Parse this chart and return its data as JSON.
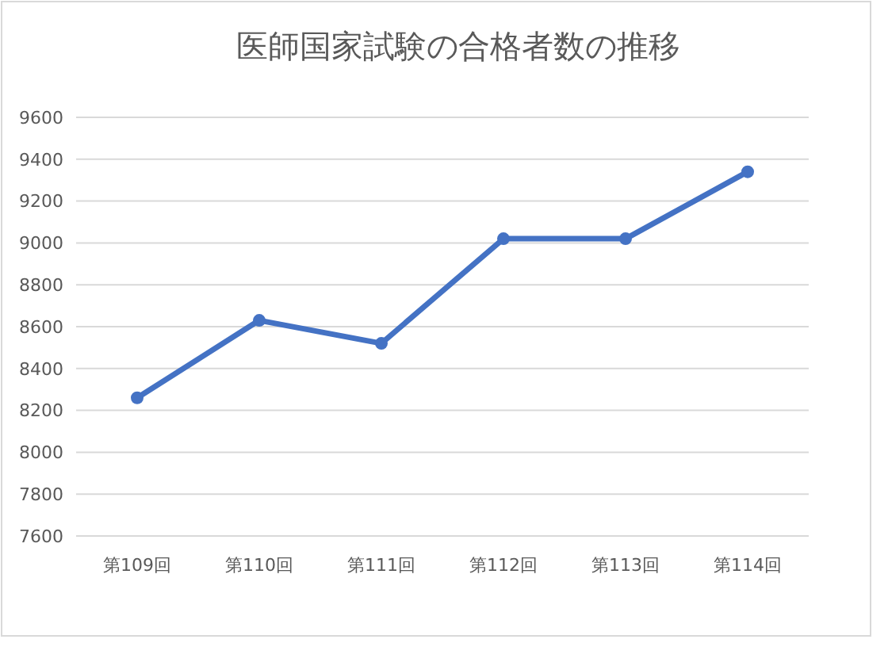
{
  "chart_data": {
    "type": "line",
    "title": "医師国家試験の合格者数の推移",
    "categories": [
      "第109回",
      "第110回",
      "第111回",
      "第112回",
      "第113回",
      "第114回"
    ],
    "series": [
      {
        "color": "#4472c4",
        "values": [
          8260,
          8630,
          8520,
          9020,
          9020,
          9340
        ]
      }
    ],
    "ylim": [
      7600,
      9600
    ],
    "yticks": [
      7600,
      7800,
      8000,
      8200,
      8400,
      8600,
      8800,
      9000,
      9200,
      9400,
      9600
    ],
    "grid": "y",
    "marker": "circle"
  }
}
